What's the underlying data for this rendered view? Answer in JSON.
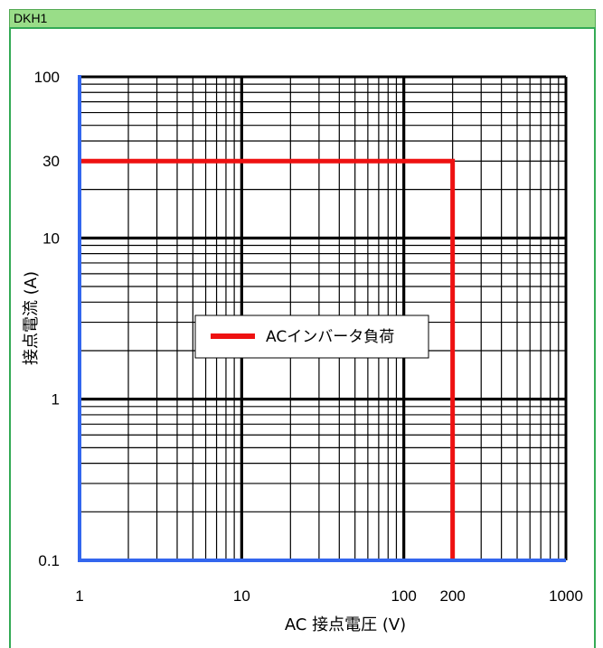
{
  "header": {
    "title": "DKH1"
  },
  "colors": {
    "header_bg": "#99dd88",
    "frame": "#33aa55",
    "axis": "#3366ee",
    "series": "#ee1111",
    "grid": "#000000"
  },
  "chart_data": {
    "type": "line",
    "xscale": "log",
    "yscale": "log",
    "xlim": [
      1,
      1000
    ],
    "ylim": [
      0.1,
      100
    ],
    "xlabel": "AC 接点電圧 (V)",
    "ylabel": "接点電流 (A)",
    "x_ticks": [
      "1",
      "10",
      "100",
      "200",
      "1000"
    ],
    "y_ticks": [
      "100",
      "30",
      "10",
      "1",
      "0.1"
    ],
    "grid": true,
    "legend_position": "center",
    "series": [
      {
        "name": "ACインバータ負荷",
        "color": "#ee1111",
        "x": [
          1,
          200,
          200
        ],
        "y": [
          30,
          30,
          0.1
        ]
      }
    ]
  }
}
